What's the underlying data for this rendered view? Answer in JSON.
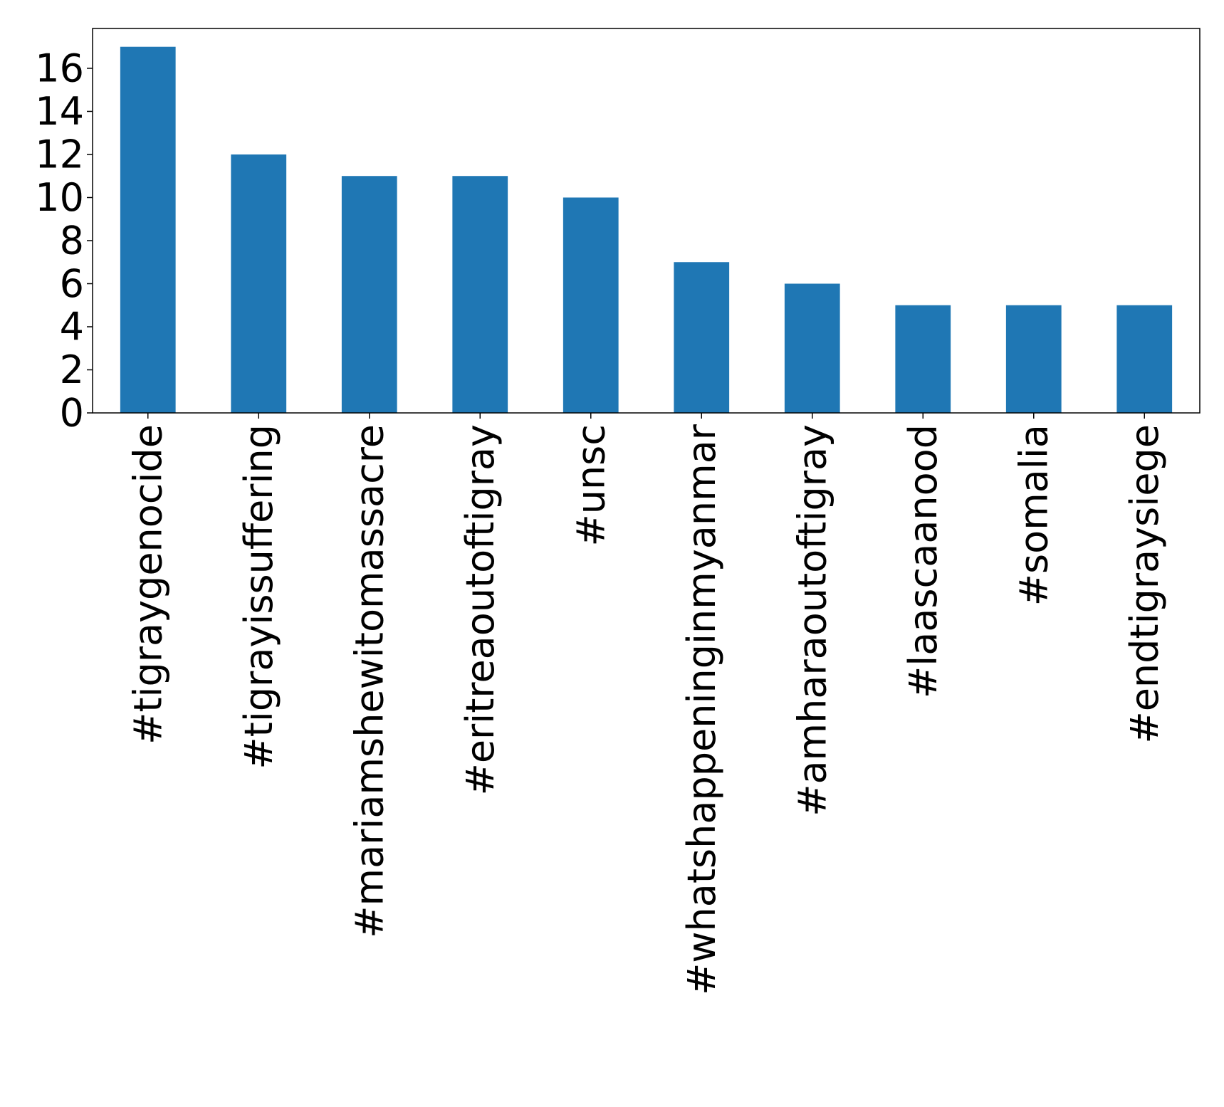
{
  "chart_data": {
    "type": "bar",
    "title": "",
    "xlabel": "",
    "ylabel": "",
    "categories": [
      "#tigraygenocide",
      "#tigrayissuffering",
      "#mariamshewitomassacre",
      "#eritreaoutoftigray",
      "#unsc",
      "#whatshappeninginmyanmar",
      "#amharaoutoftigray",
      "#laascaanood",
      "#somalia",
      "#endtigraysiege"
    ],
    "values": [
      17,
      12,
      11,
      11,
      10,
      7,
      6,
      5,
      5,
      5
    ],
    "yticks": [
      0,
      2,
      4,
      6,
      8,
      10,
      12,
      14,
      16
    ],
    "ylim": [
      0,
      17.85
    ],
    "grid": false,
    "legend": "none",
    "bar_color": "#1f77b4",
    "x_tick_label_rotation": "vertical"
  }
}
